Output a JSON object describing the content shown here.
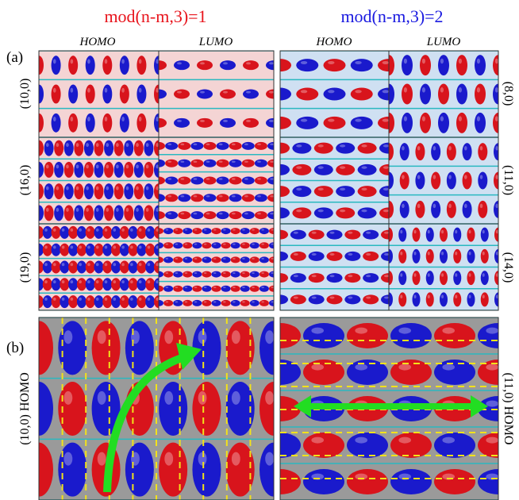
{
  "headers": {
    "left": "mod(n-m,3)=1",
    "right": "mod(n-m,3)=2"
  },
  "panel_labels": [
    "(a)",
    "(b)"
  ],
  "columns": [
    "HOMO",
    "LUMO",
    "HOMO",
    "LUMO"
  ],
  "rows_left": [
    "(10,0)",
    "(16,0)",
    "(19,0)"
  ],
  "rows_right": [
    "(8,0)",
    "(11,0)",
    "(14,0)"
  ],
  "panel_b": {
    "left": "(10,0) HOMO",
    "right": "(11,0) HOMO"
  }
}
